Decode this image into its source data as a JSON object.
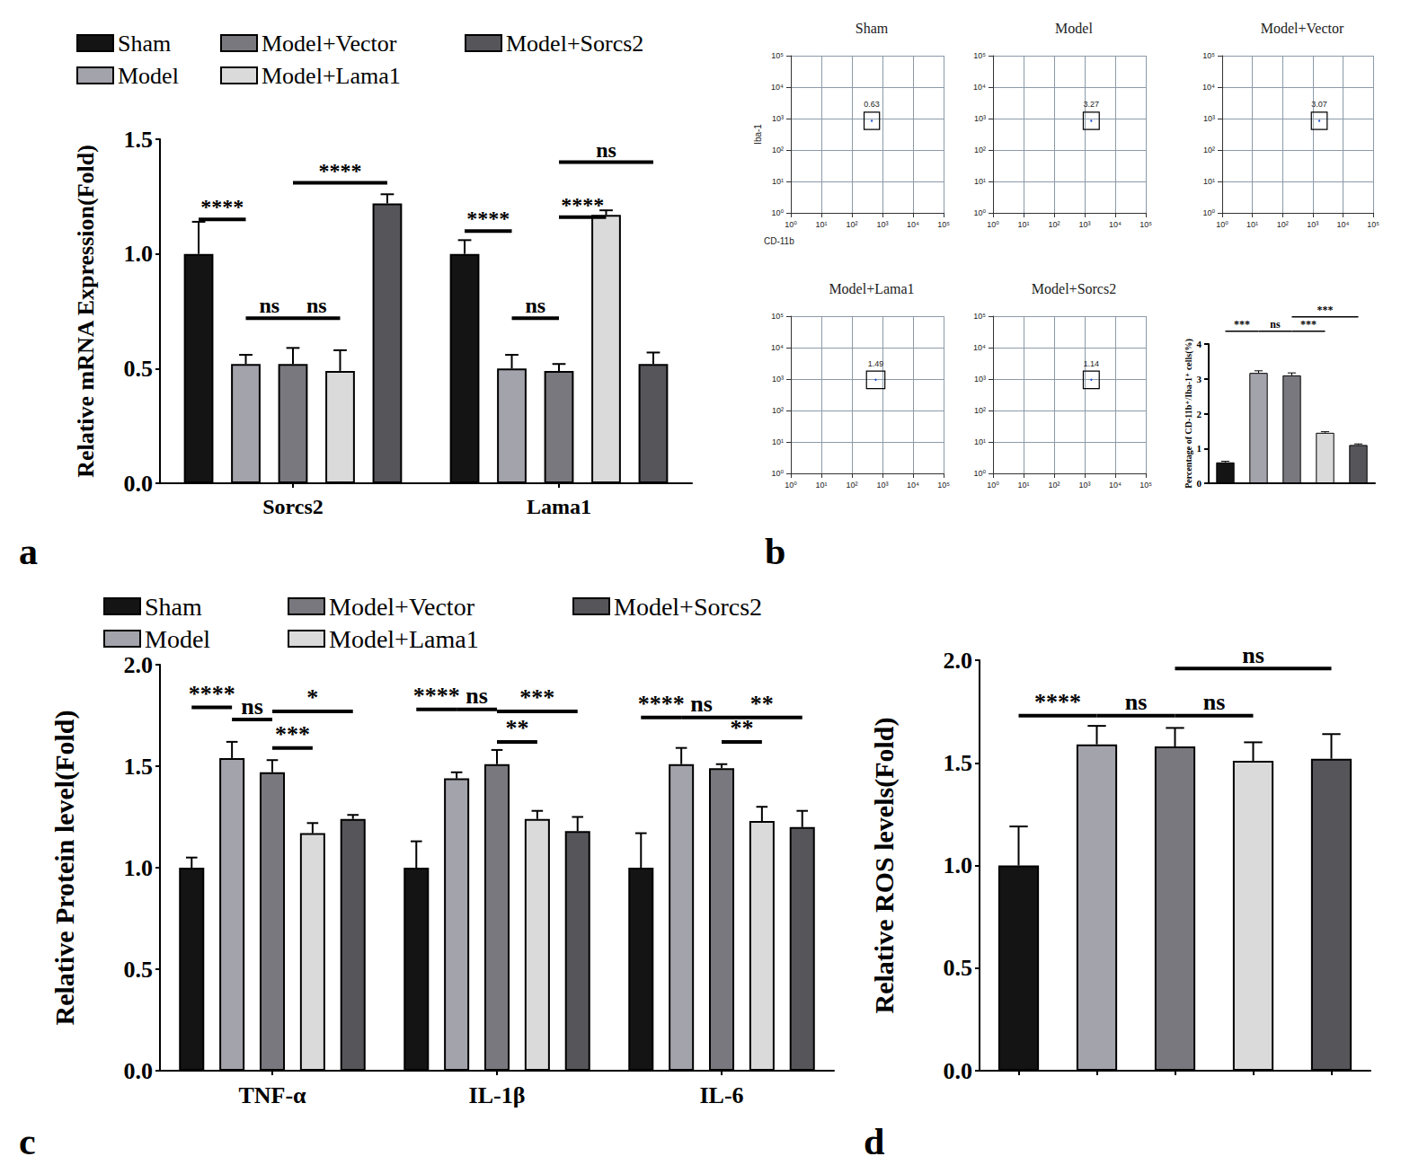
{
  "chart_data": [
    {
      "panel": "a",
      "type": "bar",
      "categories": [
        "Sorcs2",
        "Lama1"
      ],
      "series": [
        {
          "name": "Sham",
          "color": "#141414",
          "values": [
            1.0,
            1.0
          ],
          "errors": [
            0.14,
            0.06
          ]
        },
        {
          "name": "Model",
          "color": "#a3a3ab",
          "values": [
            0.52,
            0.5
          ],
          "errors": [
            0.04,
            0.06
          ]
        },
        {
          "name": "Model+Vector",
          "color": "#78787e",
          "values": [
            0.52,
            0.49
          ],
          "errors": [
            0.07,
            0.03
          ]
        },
        {
          "name": "Model+Lama1",
          "color": "#dadada",
          "values": [
            0.49,
            1.17
          ],
          "errors": [
            0.09,
            0.02
          ]
        },
        {
          "name": "Model+Sorcs2",
          "color": "#55555a",
          "values": [
            1.22,
            0.52
          ],
          "errors": [
            0.04,
            0.05
          ]
        }
      ],
      "ylabel": "Relative mRNA Expression(Fold)",
      "ylim": [
        0,
        1.5
      ],
      "yticks": [
        {
          "value": 0,
          "label": "0.0"
        },
        {
          "value": 0.5,
          "label": "0.5"
        },
        {
          "value": 1,
          "label": "1.0"
        },
        {
          "value": 1.5,
          "label": "1.5"
        }
      ],
      "grid": false,
      "legend": "top",
      "significance": [
        {
          "category": 0,
          "from": 0,
          "to": 1,
          "y": 1.15,
          "text": "****"
        },
        {
          "category": 0,
          "from": 1,
          "to": 2,
          "y": 0.72,
          "text": "ns"
        },
        {
          "category": 0,
          "from": 2,
          "to": 3,
          "y": 0.72,
          "text": "ns"
        },
        {
          "category": 0,
          "from": 2,
          "to": 4,
          "y": 1.31,
          "text": "****"
        },
        {
          "category": 1,
          "from": 0,
          "to": 1,
          "y": 1.1,
          "text": "****"
        },
        {
          "category": 1,
          "from": 1,
          "to": 2,
          "y": 0.72,
          "text": "ns"
        },
        {
          "category": 1,
          "from": 2,
          "to": 3,
          "y": 1.16,
          "text": "****"
        },
        {
          "category": 1,
          "from": 2,
          "to": 4,
          "y": 1.4,
          "text": "ns"
        }
      ]
    },
    {
      "type": "scatter",
      "title": "Sham",
      "xlabel": "CD-11b",
      "ylabel": "Iba-1",
      "log": true,
      "xlim": [
        1,
        100000
      ],
      "ylim": [
        1,
        100000
      ],
      "xticks": [
        {
          "value": 1,
          "label": "10⁰"
        },
        {
          "value": 10,
          "label": "10¹"
        },
        {
          "value": 100,
          "label": "10²"
        },
        {
          "value": 1000,
          "label": "10³"
        },
        {
          "value": 10000,
          "label": "10⁴"
        },
        {
          "value": 100000,
          "label": "10⁵"
        }
      ],
      "yticks": [
        {
          "value": 1,
          "label": "10⁰"
        },
        {
          "value": 10,
          "label": "10¹"
        },
        {
          "value": 100,
          "label": "10²"
        },
        {
          "value": 1000,
          "label": "10³"
        },
        {
          "value": 10000,
          "label": "10⁴"
        },
        {
          "value": 100000,
          "label": "10⁵"
        }
      ],
      "grid": true,
      "gate": {
        "x": [
          250,
          800
        ],
        "y": [
          450,
          1600
        ],
        "percent": 0.63
      }
    },
    {
      "type": "scatter",
      "title": "Model",
      "log": true,
      "xlim": [
        1,
        100000
      ],
      "ylim": [
        1,
        100000
      ],
      "xticks": [
        {
          "value": 1,
          "label": "10⁰"
        },
        {
          "value": 10,
          "label": "10¹"
        },
        {
          "value": 100,
          "label": "10²"
        },
        {
          "value": 1000,
          "label": "10³"
        },
        {
          "value": 10000,
          "label": "10⁴"
        },
        {
          "value": 100000,
          "label": "10⁵"
        }
      ],
      "yticks": [
        {
          "value": 1,
          "label": "10⁰"
        },
        {
          "value": 10,
          "label": "10¹"
        },
        {
          "value": 100,
          "label": "10²"
        },
        {
          "value": 1000,
          "label": "10³"
        },
        {
          "value": 10000,
          "label": "10⁴"
        },
        {
          "value": 100000,
          "label": "10⁵"
        }
      ],
      "grid": true,
      "gate": {
        "x": [
          900,
          3000
        ],
        "y": [
          450,
          1600
        ],
        "percent": 3.27
      }
    },
    {
      "type": "scatter",
      "title": "Model+Vector",
      "log": true,
      "xlim": [
        1,
        100000
      ],
      "ylim": [
        1,
        100000
      ],
      "xticks": [
        {
          "value": 1,
          "label": "10⁰"
        },
        {
          "value": 10,
          "label": "10¹"
        },
        {
          "value": 100,
          "label": "10²"
        },
        {
          "value": 1000,
          "label": "10³"
        },
        {
          "value": 10000,
          "label": "10⁴"
        },
        {
          "value": 100000,
          "label": "10⁵"
        }
      ],
      "yticks": [
        {
          "value": 1,
          "label": "10⁰"
        },
        {
          "value": 10,
          "label": "10¹"
        },
        {
          "value": 100,
          "label": "10²"
        },
        {
          "value": 1000,
          "label": "10³"
        },
        {
          "value": 10000,
          "label": "10⁴"
        },
        {
          "value": 100000,
          "label": "10⁵"
        }
      ],
      "grid": true,
      "gate": {
        "x": [
          900,
          3000
        ],
        "y": [
          450,
          1600
        ],
        "percent": 3.07
      }
    },
    {
      "type": "scatter",
      "title": "Model+Lama1",
      "log": true,
      "xlim": [
        1,
        100000
      ],
      "ylim": [
        1,
        100000
      ],
      "xticks": [
        {
          "value": 1,
          "label": "10⁰"
        },
        {
          "value": 10,
          "label": "10¹"
        },
        {
          "value": 100,
          "label": "10²"
        },
        {
          "value": 1000,
          "label": "10³"
        },
        {
          "value": 10000,
          "label": "10⁴"
        },
        {
          "value": 100000,
          "label": "10⁵"
        }
      ],
      "yticks": [
        {
          "value": 1,
          "label": "10⁰"
        },
        {
          "value": 10,
          "label": "10¹"
        },
        {
          "value": 100,
          "label": "10²"
        },
        {
          "value": 1000,
          "label": "10³"
        },
        {
          "value": 10000,
          "label": "10⁴"
        },
        {
          "value": 100000,
          "label": "10⁵"
        }
      ],
      "grid": true,
      "gate": {
        "x": [
          300,
          1200
        ],
        "y": [
          500,
          1800
        ],
        "percent": 1.49
      }
    },
    {
      "type": "scatter",
      "title": "Model+Sorcs2",
      "log": true,
      "xlim": [
        1,
        100000
      ],
      "ylim": [
        1,
        100000
      ],
      "xticks": [
        {
          "value": 1,
          "label": "10⁰"
        },
        {
          "value": 10,
          "label": "10¹"
        },
        {
          "value": 100,
          "label": "10²"
        },
        {
          "value": 1000,
          "label": "10³"
        },
        {
          "value": 10000,
          "label": "10⁴"
        },
        {
          "value": 100000,
          "label": "10⁵"
        }
      ],
      "yticks": [
        {
          "value": 1,
          "label": "10⁰"
        },
        {
          "value": 10,
          "label": "10¹"
        },
        {
          "value": 100,
          "label": "10²"
        },
        {
          "value": 1000,
          "label": "10³"
        },
        {
          "value": 10000,
          "label": "10⁴"
        },
        {
          "value": 100000,
          "label": "10⁵"
        }
      ],
      "grid": true,
      "gate": {
        "x": [
          900,
          3000
        ],
        "y": [
          500,
          1800
        ],
        "percent": 1.14
      }
    },
    {
      "panel": "b",
      "type": "bar",
      "categories": [
        null,
        null,
        null,
        null,
        null
      ],
      "values": [
        0.6,
        3.17,
        3.1,
        1.45,
        1.1
      ],
      "errors": [
        0.03,
        0.06,
        0.07,
        0.03,
        0.03
      ],
      "colors": [
        "#141414",
        "#a3a3ab",
        "#78787e",
        "#dadada",
        "#55555a"
      ],
      "ylabel": "Percentage of CD-11b⁺/Iba-1⁺ cells(%)",
      "ylim": [
        0,
        4
      ],
      "yticks": [
        0,
        1,
        2,
        3,
        4
      ],
      "grid": false,
      "significance": [
        {
          "from": 0,
          "to": 1,
          "y": 4.37,
          "text": "***"
        },
        {
          "from": 1,
          "to": 2,
          "y": 4.37,
          "text": "ns"
        },
        {
          "from": 2,
          "to": 3,
          "y": 4.37,
          "text": "***"
        },
        {
          "from": 2,
          "to": 4,
          "y": 4.78,
          "text": "***"
        }
      ]
    },
    {
      "panel": "c",
      "type": "bar",
      "categories": [
        "TNF-α",
        "IL-1β",
        "IL-6"
      ],
      "series": [
        {
          "name": "Sham",
          "color": "#141414",
          "values": [
            1.0,
            1.0,
            1.0
          ],
          "errors": [
            0.05,
            0.13,
            0.17
          ]
        },
        {
          "name": "Model",
          "color": "#a3a3ab",
          "values": [
            1.54,
            1.44,
            1.51
          ],
          "errors": [
            0.08,
            0.03,
            0.08
          ]
        },
        {
          "name": "Model+Vector",
          "color": "#78787e",
          "values": [
            1.47,
            1.51,
            1.49
          ],
          "errors": [
            0.06,
            0.07,
            0.02
          ]
        },
        {
          "name": "Model+Lama1",
          "color": "#dadada",
          "values": [
            1.17,
            1.24,
            1.23
          ],
          "errors": [
            0.05,
            0.04,
            0.07
          ]
        },
        {
          "name": "Model+Sorcs2",
          "color": "#55555a",
          "values": [
            1.24,
            1.18,
            1.2
          ],
          "errors": [
            0.02,
            0.07,
            0.08
          ]
        }
      ],
      "ylabel": "Relative Protein level(Fold)",
      "ylim": [
        0,
        2
      ],
      "yticks": [
        {
          "value": 0,
          "label": "0.0"
        },
        {
          "value": 0.5,
          "label": "0.5"
        },
        {
          "value": 1,
          "label": "1.0"
        },
        {
          "value": 1.5,
          "label": "1.5"
        },
        {
          "value": 2,
          "label": "2.0"
        }
      ],
      "grid": false,
      "legend": "top",
      "significance": [
        {
          "category": 0,
          "from": 0,
          "to": 1,
          "y": 1.79,
          "text": "****"
        },
        {
          "category": 0,
          "from": 1,
          "to": 2,
          "y": 1.73,
          "text": "ns"
        },
        {
          "category": 0,
          "from": 2,
          "to": 4,
          "y": 1.77,
          "text": "*"
        },
        {
          "category": 0,
          "from": 2,
          "to": 3,
          "y": 1.59,
          "text": "***"
        },
        {
          "category": 1,
          "from": 0,
          "to": 1,
          "y": 1.78,
          "text": "****"
        },
        {
          "category": 1,
          "from": 1,
          "to": 2,
          "y": 1.78,
          "text": "ns"
        },
        {
          "category": 1,
          "from": 2,
          "to": 3,
          "y": 1.62,
          "text": "**"
        },
        {
          "category": 1,
          "from": 2,
          "to": 4,
          "y": 1.77,
          "text": "***"
        },
        {
          "category": 2,
          "from": 0,
          "to": 1,
          "y": 1.74,
          "text": "****"
        },
        {
          "category": 2,
          "from": 1,
          "to": 2,
          "y": 1.74,
          "text": "ns"
        },
        {
          "category": 2,
          "from": 2,
          "to": 3,
          "y": 1.62,
          "text": "**"
        },
        {
          "category": 2,
          "from": 2,
          "to": 4,
          "y": 1.74,
          "text": "**"
        }
      ]
    },
    {
      "panel": "d",
      "type": "bar",
      "categories": [
        null,
        null,
        null,
        null,
        null
      ],
      "values": [
        1.0,
        1.59,
        1.58,
        1.51,
        1.52
      ],
      "errors": [
        0.19,
        0.09,
        0.09,
        0.09,
        0.12
      ],
      "colors": [
        "#141414",
        "#a3a3ab",
        "#78787e",
        "#dadada",
        "#55555a"
      ],
      "ylabel": "Relative ROS levels(Fold)",
      "ylim": [
        0,
        2
      ],
      "yticks": [
        {
          "value": 0,
          "label": "0.0"
        },
        {
          "value": 0.5,
          "label": "0.5"
        },
        {
          "value": 1,
          "label": "1.0"
        },
        {
          "value": 1.5,
          "label": "1.5"
        },
        {
          "value": 2,
          "label": "2.0"
        }
      ],
      "grid": false,
      "significance": [
        {
          "from": 0,
          "to": 1,
          "y": 1.73,
          "text": "****"
        },
        {
          "from": 1,
          "to": 2,
          "y": 1.73,
          "text": "ns"
        },
        {
          "from": 2,
          "to": 3,
          "y": 1.73,
          "text": "ns"
        },
        {
          "from": 2,
          "to": 4,
          "y": 1.96,
          "text": "ns"
        }
      ]
    }
  ]
}
